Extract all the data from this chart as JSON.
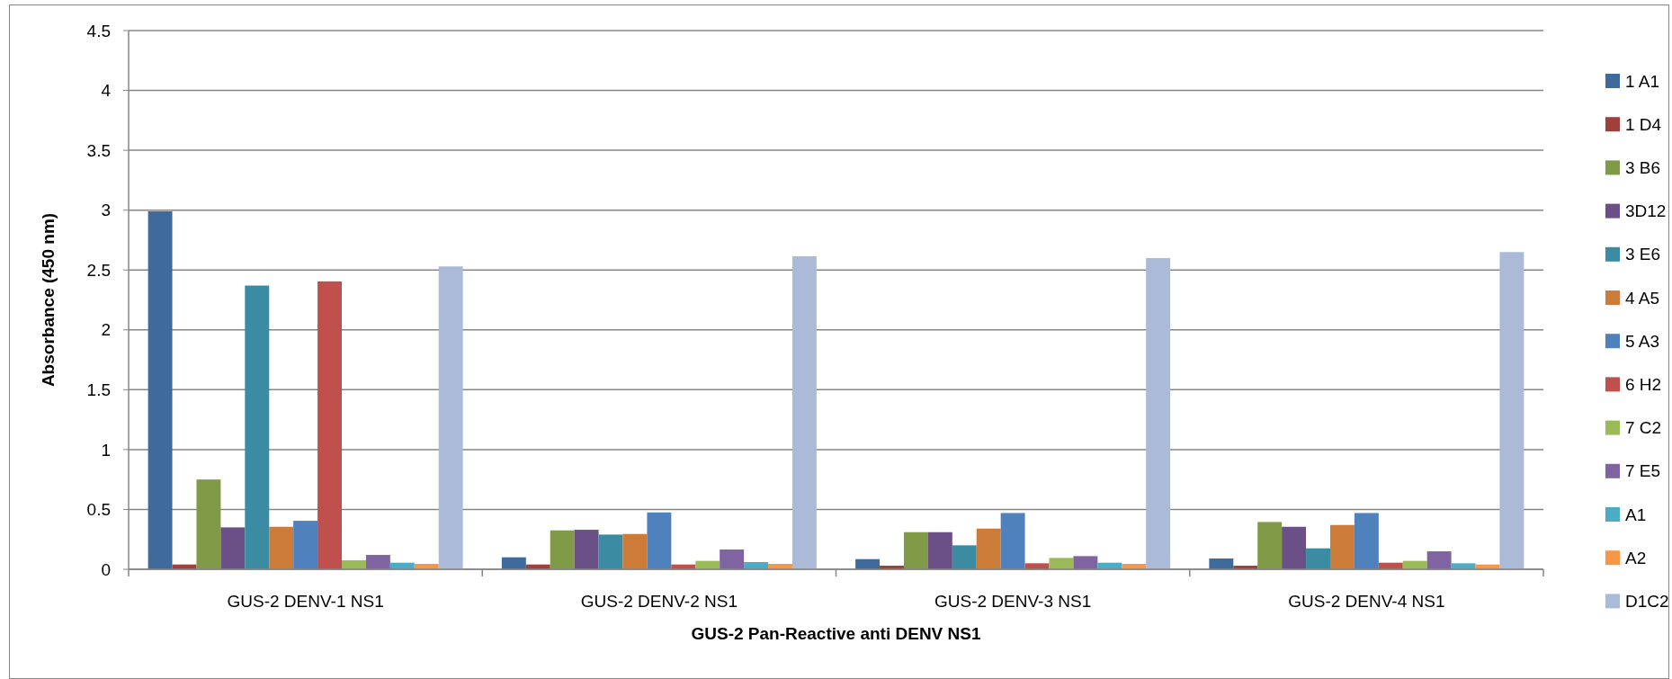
{
  "chart_data": {
    "type": "bar",
    "xlabel": "GUS-2 Pan-Reactive anti DENV NS1",
    "ylabel": "Absorbance (450 nm)",
    "categories": [
      "GUS-2 DENV-1 NS1",
      "GUS-2 DENV-2 NS1",
      "GUS-2 DENV-3 NS1",
      "GUS-2 DENV-4 NS1"
    ],
    "series": [
      {
        "name": "1 A1",
        "color": "#3f6a9c",
        "values": [
          2.99,
          0.1,
          0.085,
          0.09
        ]
      },
      {
        "name": "1 D4",
        "color": "#a0403d",
        "values": [
          0.04,
          0.04,
          0.03,
          0.03
        ]
      },
      {
        "name": "3 B6",
        "color": "#809a48",
        "values": [
          0.75,
          0.325,
          0.31,
          0.395
        ]
      },
      {
        "name": "3D12",
        "color": "#6a5087",
        "values": [
          0.35,
          0.33,
          0.31,
          0.355
        ]
      },
      {
        "name": "3 E6",
        "color": "#3b8ca2",
        "values": [
          2.37,
          0.29,
          0.2,
          0.175
        ]
      },
      {
        "name": "4 A5",
        "color": "#cc7b39",
        "values": [
          0.355,
          0.295,
          0.34,
          0.37
        ]
      },
      {
        "name": "5 A3",
        "color": "#4f81bd",
        "values": [
          0.405,
          0.475,
          0.47,
          0.47
        ]
      },
      {
        "name": "6 H2",
        "color": "#c0504d",
        "values": [
          2.405,
          0.04,
          0.05,
          0.055
        ]
      },
      {
        "name": "7 C2",
        "color": "#9bbb59",
        "values": [
          0.075,
          0.07,
          0.095,
          0.07
        ]
      },
      {
        "name": "7 E5",
        "color": "#8064a2",
        "values": [
          0.12,
          0.165,
          0.11,
          0.15
        ]
      },
      {
        "name": "A1",
        "color": "#4bacc6",
        "values": [
          0.055,
          0.06,
          0.055,
          0.05
        ]
      },
      {
        "name": "A2",
        "color": "#f79646",
        "values": [
          0.045,
          0.045,
          0.045,
          0.04
        ]
      },
      {
        "name": "D1C2",
        "color": "#aabad7",
        "values": [
          2.53,
          2.615,
          2.6,
          2.65
        ]
      }
    ],
    "ylim": [
      0,
      4.5
    ],
    "yticks": [
      0,
      0.5,
      1,
      1.5,
      2,
      2.5,
      3,
      3.5,
      4,
      4.5
    ],
    "grid": "y",
    "legend": "right"
  }
}
